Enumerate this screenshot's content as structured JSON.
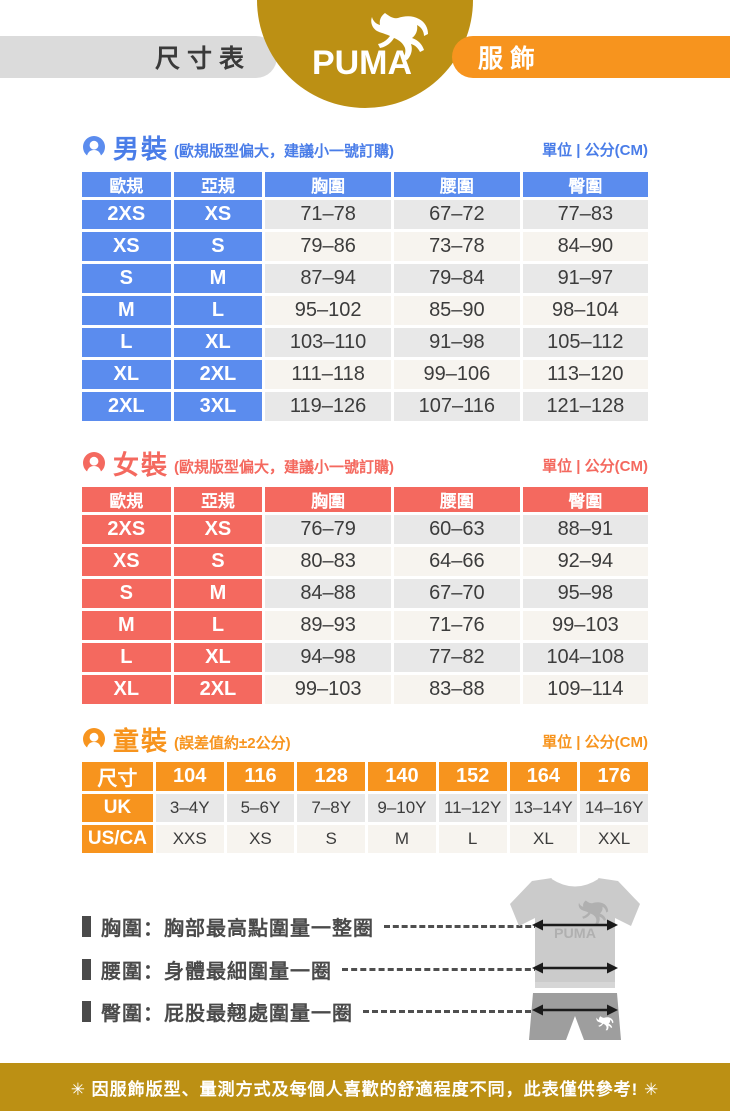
{
  "header": {
    "left_tab": "尺寸表",
    "brand": "PUMA",
    "right_tab": "服飾"
  },
  "sections": {
    "men": {
      "title": "男裝",
      "subtitle": "(歐規版型偏大，建議小一號訂購)",
      "unit": "單位 | 公分(CM)",
      "columns": [
        "歐規",
        "亞規",
        "胸圍",
        "腰圍",
        "臀圍"
      ],
      "rows": [
        [
          "2XS",
          "XS",
          "71–78",
          "67–72",
          "77–83"
        ],
        [
          "XS",
          "S",
          "79–86",
          "73–78",
          "84–90"
        ],
        [
          "S",
          "M",
          "87–94",
          "79–84",
          "91–97"
        ],
        [
          "M",
          "L",
          "95–102",
          "85–90",
          "98–104"
        ],
        [
          "L",
          "XL",
          "103–110",
          "91–98",
          "105–112"
        ],
        [
          "XL",
          "2XL",
          "111–118",
          "99–106",
          "113–120"
        ],
        [
          "2XL",
          "3XL",
          "119–126",
          "107–116",
          "121–128"
        ]
      ]
    },
    "women": {
      "title": "女裝",
      "subtitle": "(歐規版型偏大，建議小一號訂購)",
      "unit": "單位 | 公分(CM)",
      "columns": [
        "歐規",
        "亞規",
        "胸圍",
        "腰圍",
        "臀圍"
      ],
      "rows": [
        [
          "2XS",
          "XS",
          "76–79",
          "60–63",
          "88–91"
        ],
        [
          "XS",
          "S",
          "80–83",
          "64–66",
          "92–94"
        ],
        [
          "S",
          "M",
          "84–88",
          "67–70",
          "95–98"
        ],
        [
          "M",
          "L",
          "89–93",
          "71–76",
          "99–103"
        ],
        [
          "L",
          "XL",
          "94–98",
          "77–82",
          "104–108"
        ],
        [
          "XL",
          "2XL",
          "99–103",
          "83–88",
          "109–114"
        ]
      ]
    },
    "kids": {
      "title": "童裝",
      "subtitle": "(誤差值約±2公分)",
      "unit": "單位 | 公分(CM)",
      "columns": [
        "尺寸",
        "104",
        "116",
        "128",
        "140",
        "152",
        "164",
        "176"
      ],
      "rows": [
        [
          "UK",
          "3–4Y",
          "5–6Y",
          "7–8Y",
          "9–10Y",
          "11–12Y",
          "13–14Y",
          "14–16Y"
        ],
        [
          "US/CA",
          "XXS",
          "XS",
          "S",
          "M",
          "L",
          "XL",
          "XXL"
        ]
      ]
    }
  },
  "measurements": [
    {
      "text": "胸圍：胸部最高點圍量一整圈"
    },
    {
      "text": "腰圍：身體最細圍量一圈"
    },
    {
      "text": "臀圍：屁股最翹處圍量一圈"
    }
  ],
  "diagram": {
    "shirt_logo": "PUMA"
  },
  "footer": {
    "note": "✳ 因服飾版型、量測方式及每個人喜歡的舒適程度不同，此表僅供參考! ✳"
  },
  "colors": {
    "gold": "#BC9014",
    "orange": "#F7941E",
    "blue": "#5B8CEE",
    "blue-text": "#4A7DE8",
    "coral": "#F4695F",
    "gray-pill": "#DBDBDB",
    "row-gray": "#E8E8E8",
    "row-cream": "#F7F4EF",
    "text-dark": "#3C3C3C"
  }
}
